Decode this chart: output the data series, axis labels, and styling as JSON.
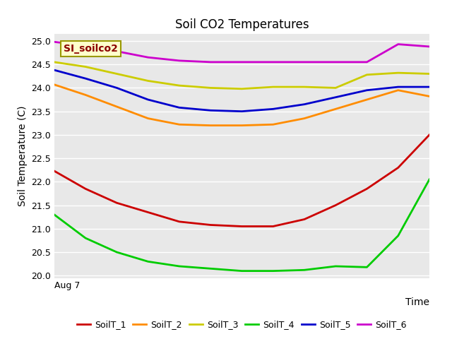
{
  "title": "Soil CO2 Temperatures",
  "xlabel": "Time",
  "ylabel": "Soil Temperature (C)",
  "annotation": "SI_soilco2",
  "ylim": [
    19.95,
    25.15
  ],
  "yticks": [
    20.0,
    20.5,
    21.0,
    21.5,
    22.0,
    22.5,
    23.0,
    23.5,
    24.0,
    24.5,
    25.0
  ],
  "x_label_start": "Aug 7",
  "background_color": "#e8e8e8",
  "series": {
    "SoilT_1": {
      "color": "#cc0000",
      "data": [
        22.23,
        21.85,
        21.55,
        21.35,
        21.15,
        21.08,
        21.05,
        21.05,
        21.2,
        21.5,
        21.85,
        22.3,
        23.0
      ]
    },
    "SoilT_2": {
      "color": "#ff8c00",
      "data": [
        24.07,
        23.85,
        23.6,
        23.35,
        23.22,
        23.2,
        23.2,
        23.22,
        23.35,
        23.55,
        23.75,
        23.95,
        23.82
      ]
    },
    "SoilT_3": {
      "color": "#cccc00",
      "data": [
        24.55,
        24.45,
        24.3,
        24.15,
        24.05,
        24.0,
        23.98,
        24.02,
        24.02,
        24.0,
        24.28,
        24.32,
        24.3
      ]
    },
    "SoilT_4": {
      "color": "#00cc00",
      "data": [
        21.3,
        20.8,
        20.5,
        20.3,
        20.2,
        20.15,
        20.1,
        20.1,
        20.12,
        20.2,
        20.18,
        20.85,
        22.05
      ]
    },
    "SoilT_5": {
      "color": "#0000cc",
      "data": [
        24.38,
        24.2,
        24.0,
        23.75,
        23.58,
        23.52,
        23.5,
        23.55,
        23.65,
        23.8,
        23.95,
        24.02,
        24.02
      ]
    },
    "SoilT_6": {
      "color": "#cc00cc",
      "data": [
        24.98,
        24.9,
        24.78,
        24.65,
        24.58,
        24.55,
        24.55,
        24.55,
        24.55,
        24.55,
        24.55,
        24.93,
        24.88
      ]
    }
  },
  "legend_order": [
    "SoilT_1",
    "SoilT_2",
    "SoilT_3",
    "SoilT_4",
    "SoilT_5",
    "SoilT_6"
  ]
}
